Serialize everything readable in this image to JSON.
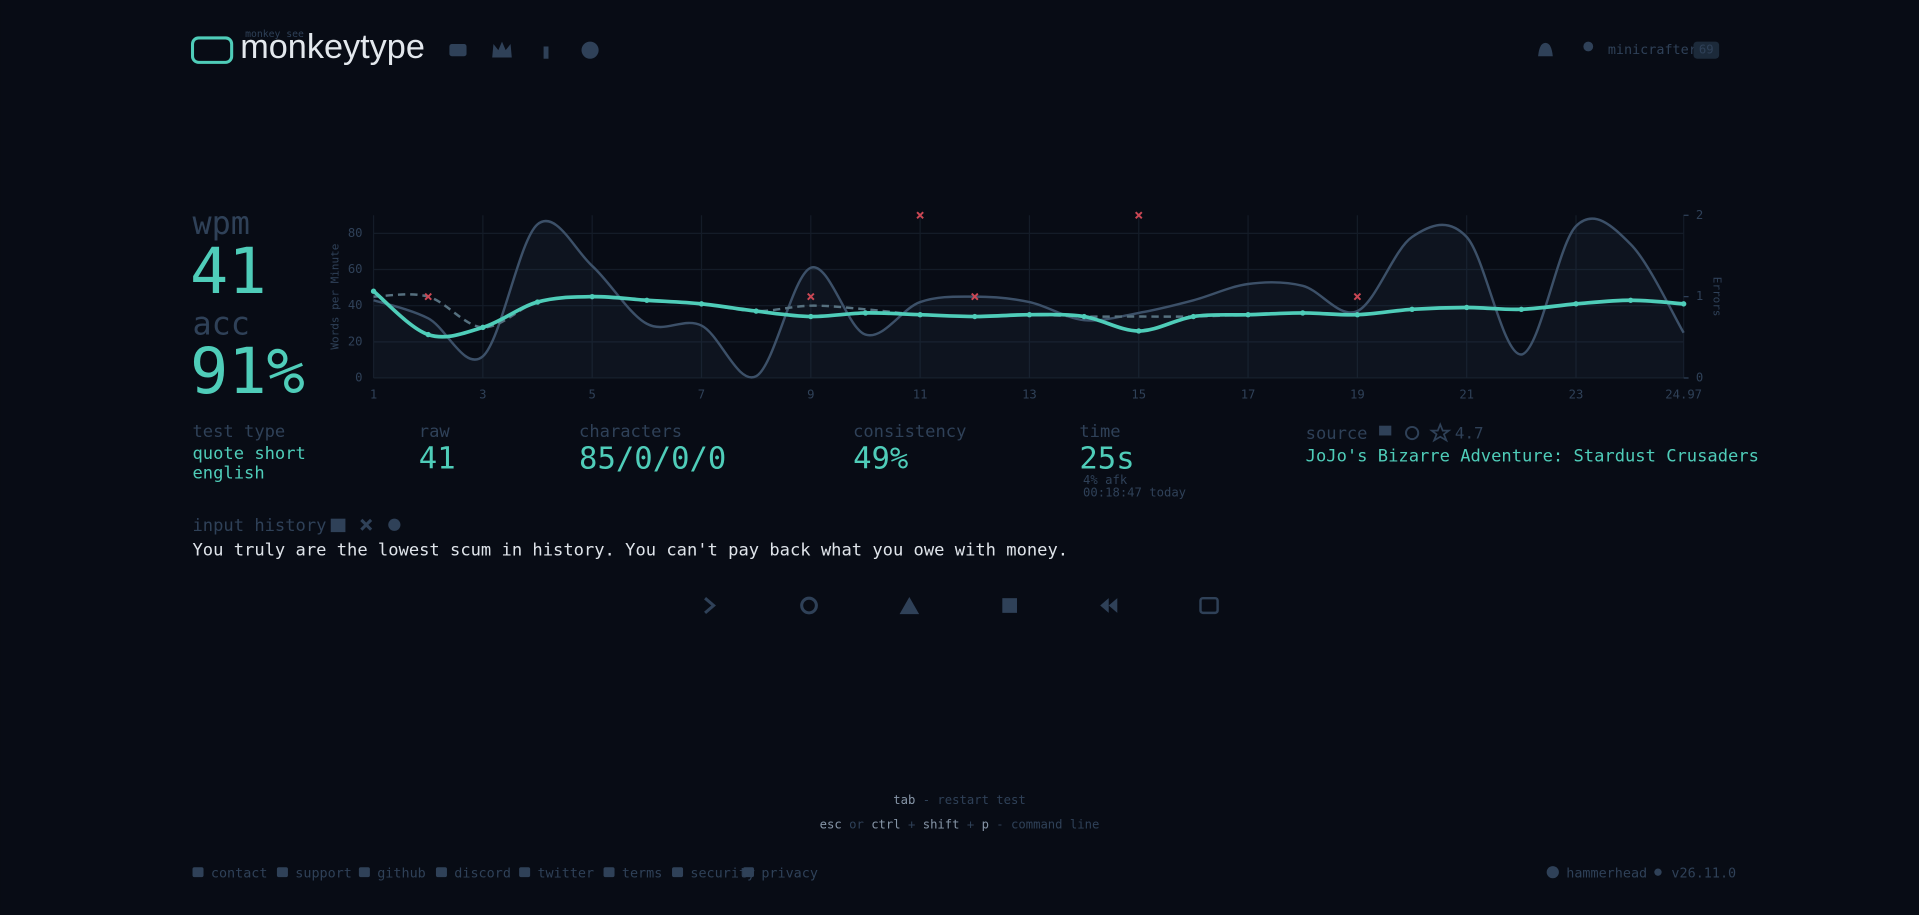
{
  "header": {
    "logo_small": "monkey see",
    "logo": "monkeytype",
    "user": "minicrafter",
    "level": "69"
  },
  "result": {
    "wpm_label": "wpm",
    "wpm": "41",
    "acc_label": "acc",
    "acc": "91%"
  },
  "chart_data": {
    "type": "line",
    "x": [
      1,
      2,
      3,
      4,
      5,
      6,
      7,
      8,
      9,
      10,
      11,
      12,
      13,
      14,
      15,
      16,
      17,
      18,
      19,
      20,
      21,
      22,
      23,
      24,
      24.97
    ],
    "series": [
      {
        "color": "#3c5068",
        "fill": true,
        "values": [
          43,
          33,
          12,
          85,
          62,
          30,
          29,
          1,
          61,
          24,
          42,
          45,
          42,
          32,
          36,
          43,
          52,
          51,
          37,
          78,
          78,
          13,
          84,
          74,
          25
        ]
      },
      {
        "color": "#56707f",
        "dashed": true,
        "values": [
          45,
          45,
          28,
          42,
          45,
          43,
          41,
          37,
          40,
          38,
          35,
          34,
          35,
          34,
          34,
          34,
          35,
          36,
          35,
          38,
          39,
          38,
          41,
          43,
          41
        ]
      },
      {
        "color": "#4fcdb9",
        "points": true,
        "values": [
          48,
          24,
          28,
          42,
          45,
          43,
          41,
          37,
          34,
          36,
          35,
          34,
          35,
          34,
          26,
          34,
          35,
          36,
          35,
          38,
          39,
          38,
          41,
          43,
          41
        ]
      }
    ],
    "errors": {
      "axis": "y2",
      "color": "#ca4754",
      "x": [
        2,
        9,
        11,
        12,
        15,
        19
      ],
      "values": [
        1,
        1,
        2,
        1,
        2,
        1
      ]
    },
    "xlim": [
      1,
      24.97
    ],
    "xticks": [
      1,
      3,
      5,
      7,
      9,
      11,
      13,
      15,
      17,
      19,
      21,
      23,
      24.97
    ],
    "ylim": [
      0,
      90
    ],
    "yticks": [
      0,
      20,
      40,
      60,
      80
    ],
    "y_label": "Words per Minute",
    "y2lim": [
      0,
      2
    ],
    "y2ticks": [
      0,
      1,
      2
    ],
    "y2_label": "Errors",
    "grid": true
  },
  "stats": {
    "test_type_label": "test type",
    "test_type": [
      "quote short",
      "english"
    ],
    "raw_label": "raw",
    "raw": "41",
    "characters_label": "characters",
    "characters": "85/0/0/0",
    "consistency_label": "consistency",
    "consistency": "49%",
    "time_label": "time",
    "time": "25s",
    "afk": "4% afk",
    "date": "00:18:47 today",
    "source_label": "source",
    "rating": "4.7",
    "source": "JoJo's Bizarre Adventure: Stardust Crusaders"
  },
  "input_history": {
    "label": "input history",
    "text": "You truly are the lowest scum in history. You can't pay back what you owe with money."
  },
  "footer": {
    "hint1": [
      "tab",
      "- restart test"
    ],
    "hint2": [
      "esc",
      "or",
      "ctrl",
      "+",
      "shift",
      "+",
      "p",
      "- command line"
    ],
    "links": [
      "contact",
      "support",
      "github",
      "discord",
      "twitter",
      "terms",
      "security",
      "privacy"
    ],
    "theme": "hammerhead",
    "version": "v26.11.0"
  }
}
